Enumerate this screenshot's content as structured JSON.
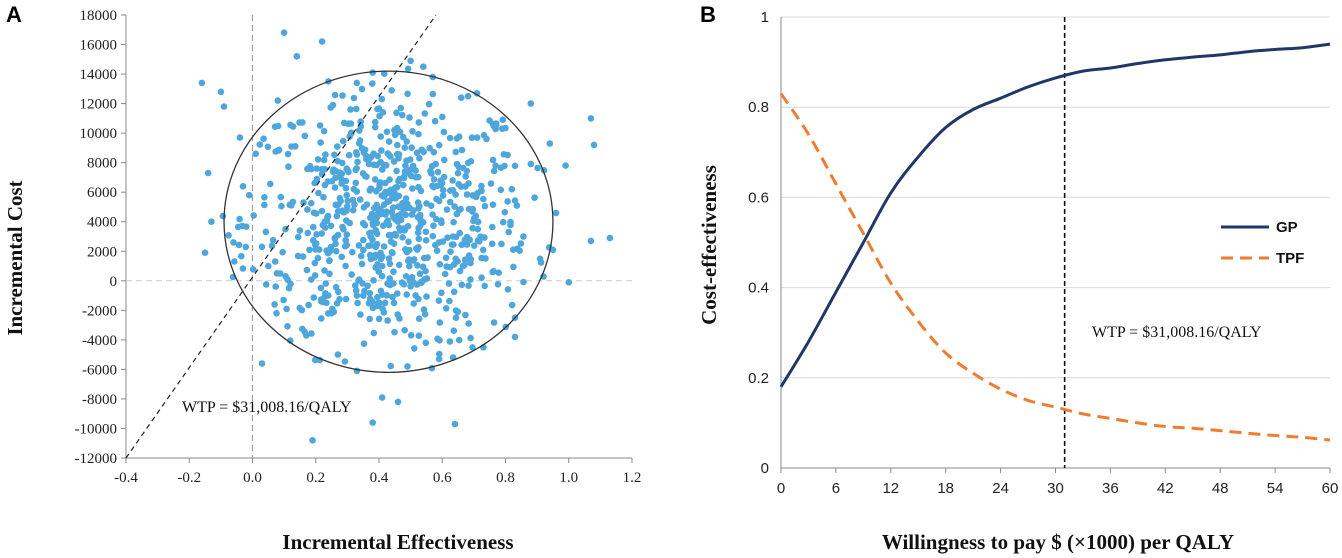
{
  "chart_data": [
    {
      "panel": "A",
      "type": "scatter",
      "xlabel": "Incremental Effectiveness",
      "ylabel": "Incremental Cost",
      "xlim": [
        -0.4,
        1.2
      ],
      "ylim": [
        -12000,
        18000
      ],
      "x_ticks": [
        "-0.4",
        "-0.2",
        "0.0",
        "0.2",
        "0.4",
        "0.6",
        "0.8",
        "1.0",
        "1.2"
      ],
      "y_ticks": [
        "18000",
        "16000",
        "14000",
        "12000",
        "10000",
        "8000",
        "6000",
        "4000",
        "2000",
        "0",
        "-2000",
        "-4000",
        "-6000",
        "-8000",
        "-10000",
        "-12000"
      ],
      "wtp_label": "WTP = $31,008.16/QALY",
      "wtp_line": {
        "x1": -0.4,
        "y1": -12000,
        "x2": 0.58,
        "y2": 18000
      },
      "ellipse": {
        "cx": 0.43,
        "cy": 4000,
        "rx": 0.52,
        "ry": 10200
      },
      "point_color": "#4da6dc",
      "points": [
        [
          0.1,
          16800
        ],
        [
          0.22,
          16200
        ],
        [
          0.14,
          15200
        ],
        [
          0.5,
          14900
        ],
        [
          0.54,
          14500
        ],
        [
          -0.16,
          13400
        ],
        [
          -0.1,
          12800
        ],
        [
          -0.09,
          11800
        ],
        [
          0.71,
          12700
        ],
        [
          0.88,
          12000
        ],
        [
          1.07,
          11000
        ],
        [
          1.08,
          9200
        ],
        [
          -0.04,
          9700
        ],
        [
          0.99,
          7800
        ],
        [
          -0.14,
          7300
        ],
        [
          -0.13,
          4000
        ],
        [
          -0.15,
          1900
        ],
        [
          1.13,
          2900
        ],
        [
          1.07,
          2700
        ],
        [
          1.0,
          -100
        ],
        [
          0.03,
          -5600
        ],
        [
          0.33,
          -6100
        ],
        [
          0.49,
          -5800
        ],
        [
          0.38,
          -9600
        ],
        [
          0.19,
          -10800
        ],
        [
          0.64,
          -9700
        ],
        [
          0.46,
          -8200
        ],
        [
          0.41,
          -7900
        ],
        [
          0.83,
          -3800
        ],
        [
          0.92,
          300
        ],
        [
          0.95,
          2100
        ],
        [
          0.96,
          4600
        ],
        [
          0.94,
          9300
        ],
        [
          -0.01,
          5800
        ],
        [
          0.01,
          8600
        ],
        [
          0.08,
          12200
        ],
        [
          0.24,
          13500
        ],
        [
          0.38,
          14100
        ],
        [
          0.57,
          13800
        ],
        [
          0.66,
          12400
        ],
        [
          0.79,
          10300
        ],
        [
          0.88,
          7900
        ],
        [
          0.17,
          -3700
        ],
        [
          0.27,
          -5000
        ],
        [
          0.59,
          -5300
        ],
        [
          0.73,
          -4500
        ],
        [
          0.83,
          -2500
        ],
        [
          0.07,
          -1600
        ],
        [
          -0.06,
          2600
        ],
        [
          -0.03,
          6400
        ],
        [
          0.03,
          2300
        ],
        [
          0.05,
          1000
        ],
        [
          0.12,
          -200
        ],
        [
          0.15,
          3400
        ],
        [
          0.31,
          11600
        ],
        [
          0.44,
          12900
        ],
        [
          0.6,
          11100
        ],
        [
          0.74,
          9600
        ],
        [
          0.82,
          6200
        ],
        [
          0.81,
          3300
        ]
      ]
    },
    {
      "panel": "B",
      "type": "line",
      "xlabel": "Willingness to pay  $ (×1000) per QALY",
      "ylabel": "Cost-effectiveness",
      "xlim": [
        0,
        60
      ],
      "ylim": [
        0,
        1
      ],
      "x_ticks": [
        "0",
        "6",
        "12",
        "18",
        "24",
        "30",
        "36",
        "42",
        "48",
        "54",
        "60"
      ],
      "y_ticks": [
        "1",
        "0.8",
        "0.6",
        "0.4",
        "0.2",
        "0"
      ],
      "wtp_label": "WTP = $31,008.16/QALY",
      "wtp_x": 31.0,
      "legend_position": "right",
      "x": [
        0,
        3,
        6,
        9,
        12,
        15,
        18,
        21,
        24,
        27,
        30,
        33,
        36,
        39,
        42,
        45,
        48,
        51,
        54,
        57,
        60
      ],
      "series": [
        {
          "name": "GP",
          "color": "#1f3868",
          "style": "solid",
          "values": [
            0.18,
            0.28,
            0.39,
            0.5,
            0.61,
            0.69,
            0.755,
            0.795,
            0.82,
            0.845,
            0.865,
            0.88,
            0.887,
            0.897,
            0.905,
            0.911,
            0.916,
            0.923,
            0.928,
            0.932,
            0.94
          ]
        },
        {
          "name": "TPF",
          "color": "#ee7d30",
          "style": "dashed",
          "values": [
            0.83,
            0.74,
            0.63,
            0.52,
            0.41,
            0.325,
            0.255,
            0.21,
            0.175,
            0.15,
            0.135,
            0.12,
            0.11,
            0.1,
            0.092,
            0.088,
            0.083,
            0.077,
            0.072,
            0.068,
            0.062
          ]
        }
      ]
    }
  ]
}
